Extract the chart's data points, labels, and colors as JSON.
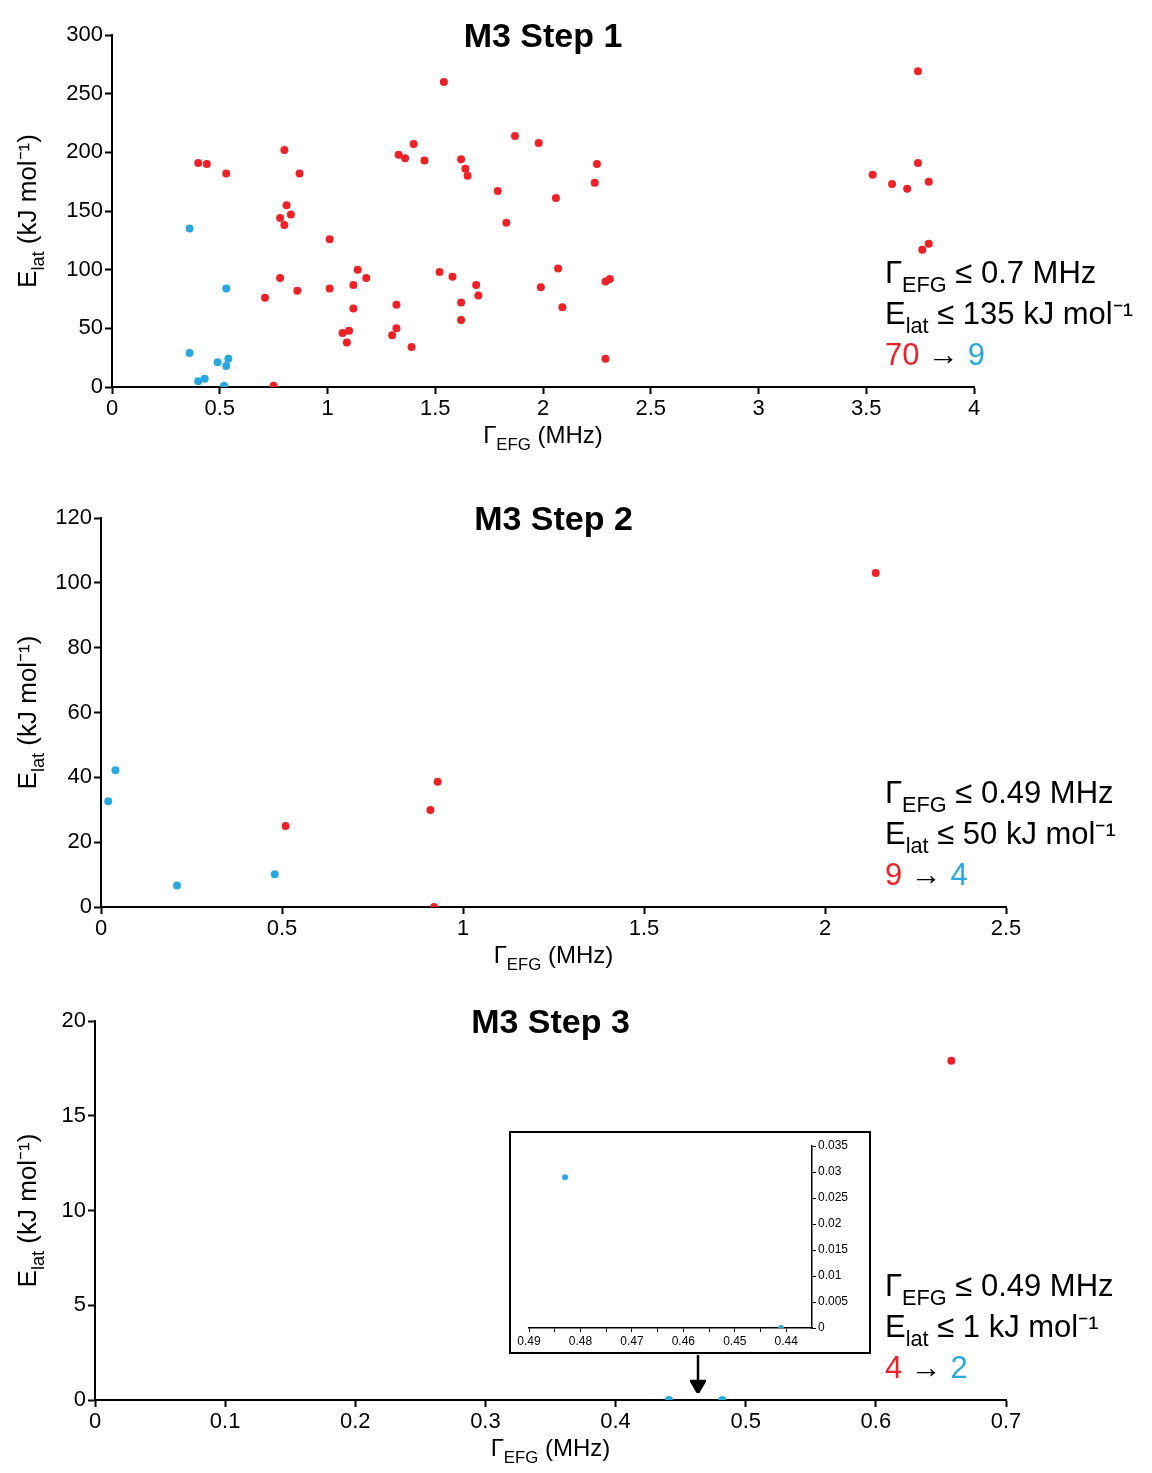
{
  "chart_data": [
    {
      "type": "scatter",
      "title": "M3 Step 1",
      "xlabel": "Γ$_{EFG}$ (MHz)",
      "ylabel": "E$_{lat}$ (kJ mol⁻¹)",
      "xlim": [
        0,
        4
      ],
      "xticks": [
        0,
        0.5,
        1,
        1.5,
        2,
        2.5,
        3,
        3.5,
        4
      ],
      "ylim": [
        0,
        300
      ],
      "yticks": [
        0,
        50,
        100,
        150,
        200,
        250,
        300
      ],
      "marker": "circle",
      "annotations": [
        "Γ$_{EFG}$ ≤ 0.7 MHz",
        "E$_{lat}$ ≤ 135 kJ mol⁻¹",
        "70 → 9"
      ],
      "series": [
        {
          "color": "#ee2127",
          "x": [
            0.4,
            0.44,
            0.53,
            0.8,
            0.87,
            0.81,
            0.83,
            0.78,
            0.8,
            1.01,
            0.78,
            0.86,
            0.71,
            1.01,
            1.14,
            1.18,
            1.12,
            1.12,
            1.1,
            1.07,
            1.09,
            0.75,
            1.54,
            1.87,
            1.98,
            1.4,
            1.33,
            1.36,
            1.45,
            1.62,
            1.64,
            1.65,
            2.25,
            2.24,
            1.79,
            2.06,
            1.83,
            1.52,
            1.58,
            2.07,
            1.69,
            1.7,
            1.99,
            2.29,
            2.31,
            1.62,
            1.62,
            2.09,
            1.32,
            1.32,
            1.3,
            1.39,
            2.29,
            3.74,
            3.53,
            3.74,
            3.62,
            3.69,
            3.79,
            3.79,
            3.76
          ],
          "values": [
            191,
            190,
            182,
            202,
            182,
            155,
            147,
            144,
            138,
            126,
            93,
            82,
            76,
            84,
            100,
            93,
            87,
            67,
            48,
            46,
            38,
            1,
            260,
            214,
            208,
            207,
            198,
            195,
            193,
            194,
            186,
            180,
            190,
            174,
            167,
            161,
            140,
            98,
            94,
            101,
            87,
            78,
            85,
            90,
            92,
            72,
            57,
            68,
            70,
            50,
            44,
            34,
            24,
            269,
            181,
            191,
            173,
            169,
            175,
            122,
            117
          ]
        },
        {
          "color": "#29a8e0",
          "x": [
            0.36,
            0.53,
            0.36,
            0.49,
            0.54,
            0.53,
            0.4,
            0.43,
            0.52
          ],
          "values": [
            135,
            84,
            29,
            21,
            24,
            18,
            5,
            7,
            1
          ]
        }
      ]
    },
    {
      "type": "scatter",
      "title": "M3 Step 2",
      "xlabel": "Γ$_{EFG}$ (MHz)",
      "ylabel": "E$_{lat}$ (kJ mol⁻¹)",
      "xlim": [
        0,
        2.5
      ],
      "xticks": [
        0,
        0.5,
        1,
        1.5,
        2,
        2.5
      ],
      "ylim": [
        0,
        120
      ],
      "yticks": [
        0,
        20,
        40,
        60,
        80,
        100,
        120
      ],
      "marker": "circle",
      "annotations": [
        "Γ$_{EFG}$ ≤ 0.49 MHz",
        "E$_{lat}$ ≤ 50 kJ mol⁻¹",
        "9 → 4"
      ],
      "series": [
        {
          "color": "#ee2127",
          "x": [
            0.51,
            0.93,
            0.91,
            0.92,
            2.14
          ],
          "values": [
            25,
            38.6,
            29.9,
            0,
            103
          ]
        },
        {
          "color": "#29a8e0",
          "x": [
            0.04,
            0.02,
            0.21,
            0.48
          ],
          "values": [
            42.2,
            32.6,
            6.6,
            10.1
          ]
        }
      ]
    },
    {
      "type": "scatter",
      "title": "M3 Step 3",
      "xlabel": "Γ$_{EFG}$ (MHz)",
      "ylabel": "E$_{lat}$ (kJ mol⁻¹)",
      "xlim": [
        0,
        0.7
      ],
      "xticks": [
        0,
        0.1,
        0.2,
        0.3,
        0.4,
        0.5,
        0.6,
        0.7
      ],
      "ylim": [
        0,
        20
      ],
      "yticks": [
        0,
        5,
        10,
        15,
        20
      ],
      "marker": "circle",
      "annotations": [
        "Γ$_{EFG}$ ≤ 0.49 MHz",
        "E$_{lat}$ ≤ 1 kJ mol⁻¹",
        "4 → 2"
      ],
      "series": [
        {
          "color": "#ee2127",
          "x": [
            0.658
          ],
          "values": [
            17.9
          ]
        },
        {
          "color": "#29a8e0",
          "x": [
            0.441,
            0.482
          ],
          "values": [
            0,
            0
          ]
        }
      ]
    },
    {
      "type": "scatter",
      "xlim": [
        0.49,
        0.435
      ],
      "xticks": [
        0.49,
        {
          "value": 0.485,
          "label": null
        },
        0.48,
        {
          "value": 0.475,
          "label": null
        },
        0.47,
        {
          "value": 0.465,
          "label": null
        },
        0.46,
        {
          "value": 0.455,
          "label": null
        },
        0.45,
        {
          "value": 0.445,
          "label": null
        },
        0.44
      ],
      "y2lim": [
        0,
        0.035
      ],
      "y2ticks": [
        0,
        0.005,
        0.01,
        0.015,
        0.02,
        0.025,
        0.03,
        0.035
      ],
      "marker": "circle",
      "series": [
        {
          "color": "#29a8e0",
          "axis": "y2",
          "x": [
            0.483,
            0.441
          ],
          "values": [
            0.029,
            0
          ]
        }
      ]
    }
  ]
}
